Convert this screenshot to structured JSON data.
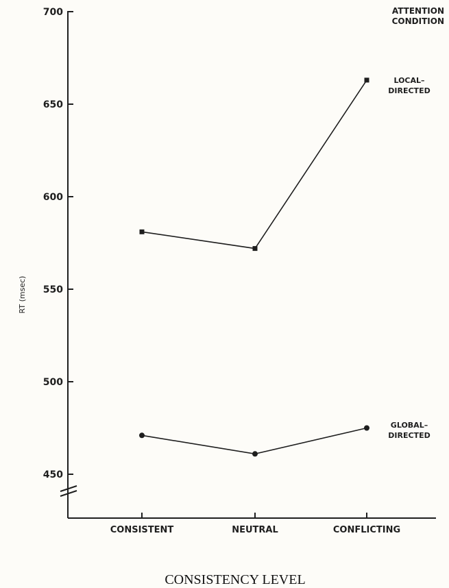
{
  "chart_data": {
    "type": "line",
    "categories": [
      "CONSISTENT",
      "NEUTRAL",
      "CONFLICTING"
    ],
    "series": [
      {
        "name": "LOCAL–DIRECTED",
        "marker": "square",
        "values": [
          581,
          572,
          663
        ]
      },
      {
        "name": "GLOBAL–DIRECTED",
        "marker": "circle",
        "values": [
          471,
          461,
          475
        ]
      }
    ],
    "title": "",
    "xlabel": "CONSISTENCY LEVEL",
    "ylabel": "RT (msec)",
    "ylim": [
      450,
      700
    ],
    "yticks": [
      450,
      500,
      550,
      600,
      650,
      700
    ],
    "legend_title": [
      "ATTENTION",
      "CONDITION"
    ],
    "axis_break": true,
    "grid": false,
    "colors": {
      "line": "#1e1e1e",
      "background": "#fdfcf8"
    }
  }
}
